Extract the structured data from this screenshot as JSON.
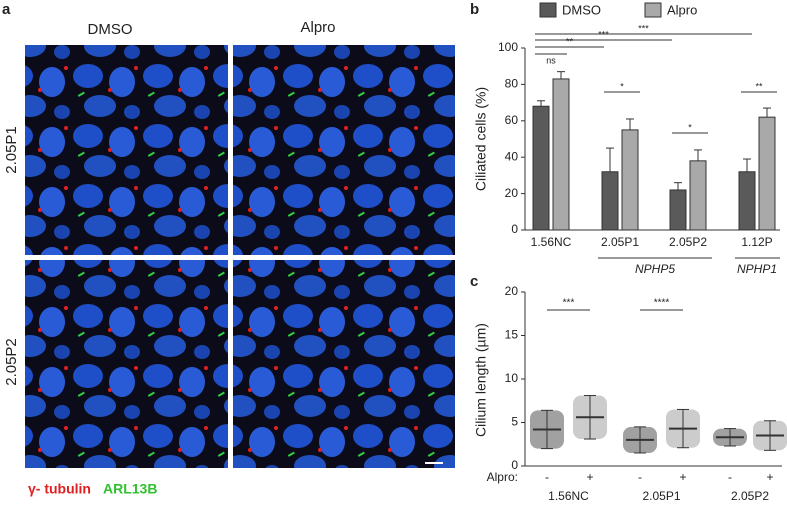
{
  "panel_a": {
    "label": "a",
    "columns": [
      "DMSO",
      "Alpro"
    ],
    "rows": [
      "2.05P1",
      "2.05P2"
    ],
    "legend": [
      "γ- tubulin",
      "ARL13B"
    ]
  },
  "chart_data": [
    {
      "type": "bar",
      "label": "b",
      "ylabel": "Ciliated cells (%)",
      "categories": [
        "1.56NC",
        "2.05P1",
        "2.05P2",
        "1.12P"
      ],
      "groups": [
        "NPHP5",
        "NPHP1"
      ],
      "series": [
        {
          "name": "DMSO",
          "color": "#5a5a5a",
          "values": [
            68,
            32,
            22,
            32
          ],
          "errors": [
            3,
            13,
            4,
            7
          ]
        },
        {
          "name": "Alpro",
          "color": "#a9a9a9",
          "values": [
            83,
            55,
            38,
            62
          ],
          "errors": [
            4,
            6,
            6,
            5
          ]
        }
      ],
      "ylim": [
        0,
        100
      ],
      "yticks": [
        0,
        20,
        40,
        60,
        80,
        100
      ],
      "annotations": [
        "ns",
        "**",
        "***",
        "***",
        "*",
        "*",
        "**"
      ]
    },
    {
      "type": "dot",
      "label": "c",
      "ylabel": "Cilium length (µm)",
      "xlabel": "Alpro:",
      "treatment": [
        "-",
        "+",
        "-",
        "+",
        "-",
        "+"
      ],
      "categories": [
        "1.56NC",
        "2.05P1",
        "2.05P2"
      ],
      "means": [
        4.2,
        5.6,
        3.0,
        4.3,
        3.3,
        3.5
      ],
      "sds": [
        2.2,
        2.5,
        1.5,
        2.2,
        1.0,
        1.7
      ],
      "ylim": [
        0,
        20
      ],
      "yticks": [
        0,
        5,
        10,
        15,
        20
      ],
      "annotations": [
        "***",
        "****"
      ]
    }
  ]
}
